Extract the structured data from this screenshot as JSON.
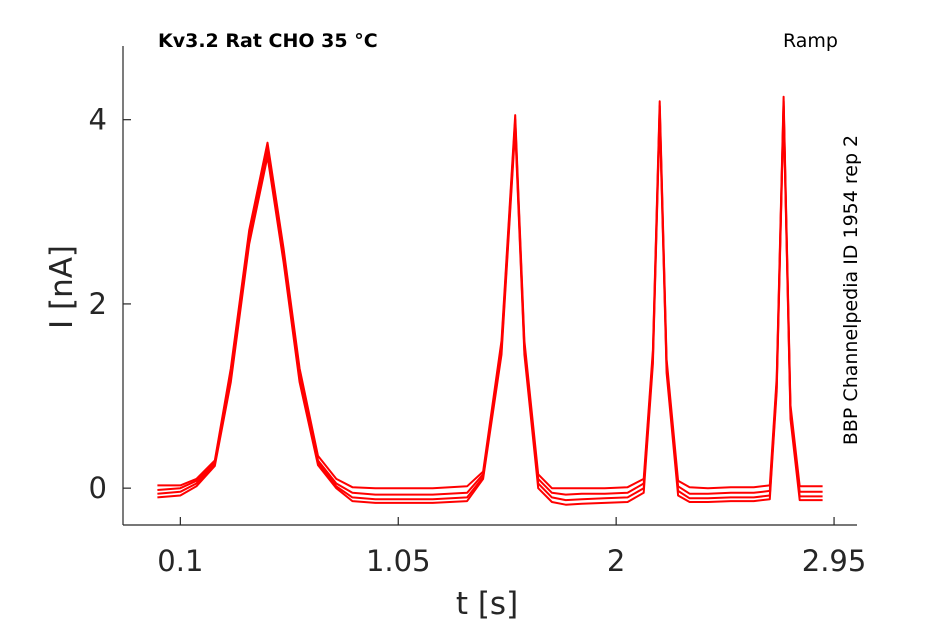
{
  "chart_data": {
    "type": "line",
    "title_left": "Kv3.2  Rat  CHO  35 °C",
    "title_right": "Ramp",
    "side_label": "BBP Channelpedia ID 1954 rep 2",
    "xlabel": "t [s]",
    "ylabel": "I [nA]",
    "xlim": [
      -0.15,
      3.05
    ],
    "ylim": [
      -0.4,
      4.8
    ],
    "x_ticks": [
      0.1,
      1.05,
      2,
      2.95
    ],
    "x_tick_labels": [
      "0.1",
      "1.05",
      "2",
      "2.95"
    ],
    "y_ticks": [
      0,
      2,
      4
    ],
    "y_tick_labels": [
      "0",
      "2",
      "4"
    ],
    "grid": false,
    "line_color": "#ff0000",
    "series": [
      {
        "x": [
          0.0,
          0.1,
          0.17,
          0.25,
          0.32,
          0.4,
          0.48,
          0.55,
          0.62,
          0.7,
          0.78,
          0.85,
          0.95,
          1.05,
          1.2,
          1.35,
          1.42,
          1.5,
          1.56,
          1.6,
          1.66,
          1.72,
          1.78,
          1.85,
          1.95,
          2.05,
          2.12,
          2.16,
          2.19,
          2.22,
          2.27,
          2.32,
          2.4,
          2.5,
          2.6,
          2.67,
          2.7,
          2.73,
          2.76,
          2.8,
          2.9
        ],
        "y": [
          0.03,
          0.03,
          0.1,
          0.3,
          1.3,
          2.8,
          3.75,
          2.6,
          1.3,
          0.35,
          0.1,
          0.01,
          0.0,
          0.0,
          0.0,
          0.02,
          0.18,
          1.6,
          4.05,
          1.6,
          0.15,
          0.0,
          0.0,
          0.0,
          0.0,
          0.01,
          0.1,
          1.5,
          4.2,
          1.4,
          0.08,
          0.01,
          0.0,
          0.01,
          0.01,
          0.03,
          1.2,
          4.25,
          0.9,
          0.02,
          0.02
        ]
      },
      {
        "x": [
          0.0,
          0.1,
          0.17,
          0.25,
          0.32,
          0.4,
          0.48,
          0.55,
          0.62,
          0.7,
          0.78,
          0.85,
          0.95,
          1.05,
          1.2,
          1.35,
          1.42,
          1.5,
          1.56,
          1.6,
          1.66,
          1.72,
          1.78,
          1.85,
          1.95,
          2.05,
          2.12,
          2.16,
          2.19,
          2.22,
          2.27,
          2.32,
          2.4,
          2.5,
          2.6,
          2.67,
          2.7,
          2.73,
          2.76,
          2.8,
          2.9
        ],
        "y": [
          -0.02,
          0.0,
          0.08,
          0.28,
          1.25,
          2.75,
          3.7,
          2.55,
          1.25,
          0.3,
          0.05,
          -0.05,
          -0.07,
          -0.07,
          -0.07,
          -0.05,
          0.15,
          1.55,
          4.0,
          1.55,
          0.1,
          -0.05,
          -0.07,
          -0.06,
          -0.06,
          -0.05,
          0.05,
          1.45,
          4.15,
          1.35,
          0.02,
          -0.06,
          -0.06,
          -0.05,
          -0.05,
          -0.03,
          1.15,
          4.2,
          0.85,
          -0.04,
          -0.04
        ]
      },
      {
        "x": [
          0.0,
          0.1,
          0.17,
          0.25,
          0.32,
          0.4,
          0.48,
          0.55,
          0.62,
          0.7,
          0.78,
          0.85,
          0.95,
          1.05,
          1.2,
          1.35,
          1.42,
          1.5,
          1.56,
          1.6,
          1.66,
          1.72,
          1.78,
          1.85,
          1.95,
          2.05,
          2.12,
          2.16,
          2.19,
          2.22,
          2.27,
          2.32,
          2.4,
          2.5,
          2.6,
          2.67,
          2.7,
          2.73,
          2.76,
          2.8,
          2.9
        ],
        "y": [
          -0.06,
          -0.04,
          0.05,
          0.26,
          1.2,
          2.7,
          3.65,
          2.5,
          1.2,
          0.28,
          0.02,
          -0.1,
          -0.12,
          -0.12,
          -0.12,
          -0.1,
          0.12,
          1.5,
          3.95,
          1.5,
          0.05,
          -0.1,
          -0.13,
          -0.12,
          -0.11,
          -0.1,
          0.0,
          1.4,
          4.1,
          1.3,
          -0.03,
          -0.11,
          -0.11,
          -0.1,
          -0.1,
          -0.08,
          1.1,
          4.15,
          0.8,
          -0.09,
          -0.09
        ]
      },
      {
        "x": [
          0.0,
          0.1,
          0.17,
          0.25,
          0.32,
          0.4,
          0.48,
          0.55,
          0.62,
          0.7,
          0.78,
          0.85,
          0.95,
          1.05,
          1.2,
          1.35,
          1.42,
          1.5,
          1.56,
          1.6,
          1.66,
          1.72,
          1.78,
          1.85,
          1.95,
          2.05,
          2.12,
          2.16,
          2.19,
          2.22,
          2.27,
          2.32,
          2.4,
          2.5,
          2.6,
          2.67,
          2.7,
          2.73,
          2.76,
          2.8,
          2.9
        ],
        "y": [
          -0.1,
          -0.08,
          0.02,
          0.24,
          1.15,
          2.65,
          3.6,
          2.45,
          1.15,
          0.25,
          0.0,
          -0.14,
          -0.16,
          -0.16,
          -0.16,
          -0.14,
          0.1,
          1.45,
          3.9,
          1.45,
          0.0,
          -0.15,
          -0.18,
          -0.17,
          -0.16,
          -0.15,
          -0.05,
          1.35,
          4.05,
          1.25,
          -0.08,
          -0.15,
          -0.15,
          -0.14,
          -0.14,
          -0.12,
          1.05,
          4.1,
          0.75,
          -0.13,
          -0.13
        ]
      }
    ]
  }
}
